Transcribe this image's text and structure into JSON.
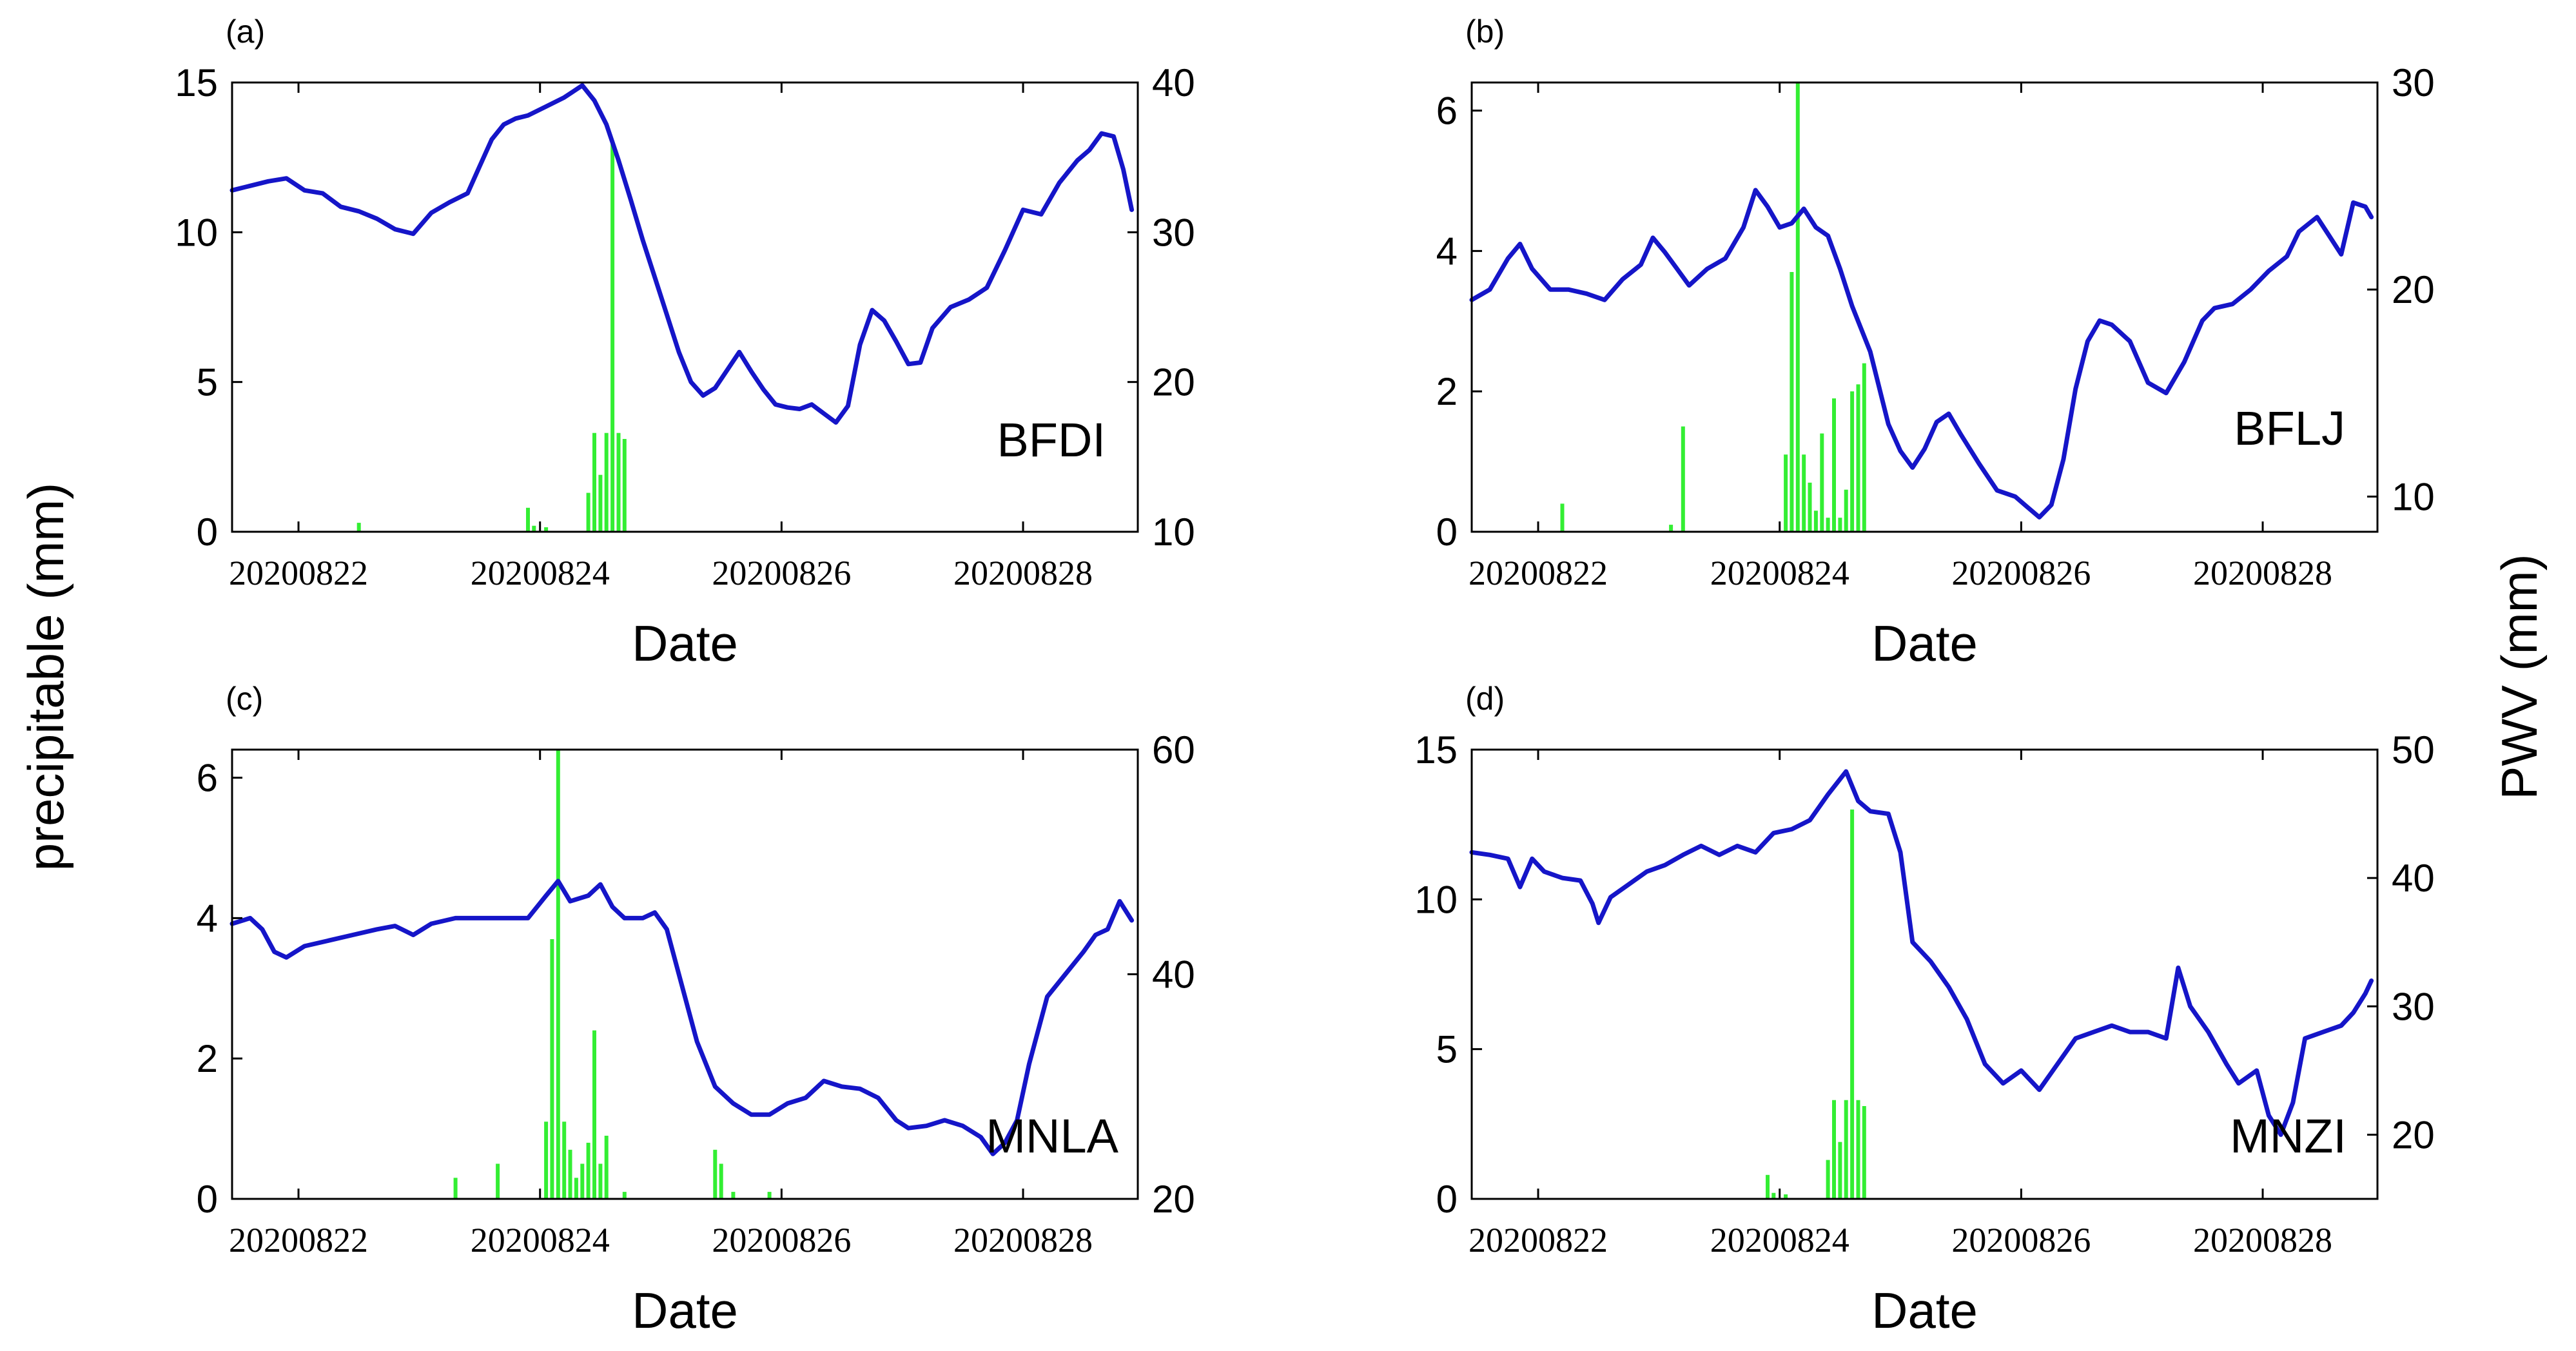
{
  "figure": {
    "left_label": "precipitable (mm)",
    "right_label": "PWV (mm)",
    "x_tick_labels": [
      "20200822",
      "20200824",
      "20200826",
      "20200828"
    ],
    "xlabel": "Date"
  },
  "colors": {
    "pwv_line": "#1515c8",
    "precip_bar": "#33ee33",
    "axis": "#000000"
  },
  "chart_data": [
    {
      "type": "bar+line",
      "panel_label": "(a)",
      "station": "BFDI",
      "xlabel": "Date",
      "x_range": [
        0,
        7.5
      ],
      "x_ticks": [
        0.55,
        2.55,
        4.55,
        6.55
      ],
      "x_tick_labels": [
        "20200822",
        "20200824",
        "20200826",
        "20200828"
      ],
      "left_axis": {
        "label": "precipitable (mm)",
        "range": [
          0,
          15
        ],
        "ticks": [
          0,
          5,
          10,
          15
        ]
      },
      "right_axis": {
        "label": "PWV (mm)",
        "range": [
          10,
          40
        ],
        "ticks": [
          10,
          20,
          30,
          40
        ]
      },
      "precipitation": [
        [
          1.05,
          0.3
        ],
        [
          2.45,
          0.8
        ],
        [
          2.5,
          0.2
        ],
        [
          2.6,
          0.15
        ],
        [
          2.95,
          1.3
        ],
        [
          3.0,
          3.3
        ],
        [
          3.05,
          1.9
        ],
        [
          3.1,
          3.3
        ],
        [
          3.15,
          13.0
        ],
        [
          3.2,
          3.3
        ],
        [
          3.25,
          3.1
        ]
      ],
      "pwv": [
        [
          0,
          32.8
        ],
        [
          0.15,
          33.1
        ],
        [
          0.3,
          33.4
        ],
        [
          0.45,
          33.6
        ],
        [
          0.6,
          32.8
        ],
        [
          0.75,
          32.6
        ],
        [
          0.9,
          31.7
        ],
        [
          1.05,
          31.4
        ],
        [
          1.2,
          30.9
        ],
        [
          1.35,
          30.2
        ],
        [
          1.5,
          29.9
        ],
        [
          1.65,
          31.3
        ],
        [
          1.8,
          32.0
        ],
        [
          1.95,
          32.6
        ],
        [
          2.05,
          34.4
        ],
        [
          2.15,
          36.2
        ],
        [
          2.25,
          37.2
        ],
        [
          2.35,
          37.6
        ],
        [
          2.45,
          37.8
        ],
        [
          2.6,
          38.4
        ],
        [
          2.75,
          39.0
        ],
        [
          2.9,
          39.8
        ],
        [
          3.0,
          38.8
        ],
        [
          3.1,
          37.2
        ],
        [
          3.2,
          34.8
        ],
        [
          3.3,
          32.2
        ],
        [
          3.4,
          29.5
        ],
        [
          3.5,
          27.0
        ],
        [
          3.6,
          24.5
        ],
        [
          3.7,
          22.0
        ],
        [
          3.8,
          20.0
        ],
        [
          3.9,
          19.1
        ],
        [
          4.0,
          19.6
        ],
        [
          4.1,
          20.8
        ],
        [
          4.2,
          22.0
        ],
        [
          4.3,
          20.7
        ],
        [
          4.4,
          19.5
        ],
        [
          4.5,
          18.5
        ],
        [
          4.6,
          18.3
        ],
        [
          4.7,
          18.2
        ],
        [
          4.8,
          18.5
        ],
        [
          4.9,
          17.9
        ],
        [
          5.0,
          17.3
        ],
        [
          5.1,
          18.4
        ],
        [
          5.2,
          22.5
        ],
        [
          5.3,
          24.8
        ],
        [
          5.4,
          24.1
        ],
        [
          5.5,
          22.7
        ],
        [
          5.6,
          21.2
        ],
        [
          5.7,
          21.3
        ],
        [
          5.8,
          23.6
        ],
        [
          5.95,
          25.0
        ],
        [
          6.1,
          25.5
        ],
        [
          6.25,
          26.3
        ],
        [
          6.4,
          28.8
        ],
        [
          6.55,
          31.5
        ],
        [
          6.7,
          31.2
        ],
        [
          6.85,
          33.3
        ],
        [
          7.0,
          34.8
        ],
        [
          7.1,
          35.5
        ],
        [
          7.2,
          36.6
        ],
        [
          7.3,
          36.4
        ],
        [
          7.38,
          34.2
        ],
        [
          7.45,
          31.5
        ]
      ]
    },
    {
      "type": "bar+line",
      "panel_label": "(b)",
      "station": "BFLJ",
      "xlabel": "Date",
      "x_range": [
        0,
        7.5
      ],
      "x_ticks": [
        0.55,
        2.55,
        4.55,
        6.55
      ],
      "x_tick_labels": [
        "20200822",
        "20200824",
        "20200826",
        "20200828"
      ],
      "left_axis": {
        "label": "precipitable (mm)",
        "range": [
          0,
          6.4
        ],
        "ticks": [
          0,
          2,
          4,
          6
        ]
      },
      "right_axis": {
        "label": "PWV (mm)",
        "range": [
          8.3,
          30
        ],
        "ticks": [
          10,
          20,
          30
        ]
      },
      "precipitation": [
        [
          0.75,
          0.4
        ],
        [
          1.65,
          0.1
        ],
        [
          1.75,
          1.5
        ],
        [
          2.6,
          1.1
        ],
        [
          2.65,
          3.7
        ],
        [
          2.7,
          6.4
        ],
        [
          2.75,
          1.1
        ],
        [
          2.8,
          0.7
        ],
        [
          2.85,
          0.3
        ],
        [
          2.9,
          1.4
        ],
        [
          2.95,
          0.2
        ],
        [
          3.0,
          1.9
        ],
        [
          3.05,
          0.2
        ],
        [
          3.1,
          0.6
        ],
        [
          3.15,
          2.0
        ],
        [
          3.2,
          2.1
        ],
        [
          3.25,
          2.4
        ]
      ],
      "pwv": [
        [
          0,
          19.5
        ],
        [
          0.15,
          20.0
        ],
        [
          0.3,
          21.5
        ],
        [
          0.4,
          22.2
        ],
        [
          0.5,
          21.0
        ],
        [
          0.65,
          20.0
        ],
        [
          0.8,
          20.0
        ],
        [
          0.95,
          19.8
        ],
        [
          1.1,
          19.5
        ],
        [
          1.25,
          20.5
        ],
        [
          1.4,
          21.2
        ],
        [
          1.5,
          22.5
        ],
        [
          1.6,
          21.8
        ],
        [
          1.7,
          21.0
        ],
        [
          1.8,
          20.2
        ],
        [
          1.95,
          21.0
        ],
        [
          2.1,
          21.5
        ],
        [
          2.25,
          23.0
        ],
        [
          2.35,
          24.8
        ],
        [
          2.45,
          24.0
        ],
        [
          2.55,
          23.0
        ],
        [
          2.65,
          23.2
        ],
        [
          2.75,
          23.9
        ],
        [
          2.85,
          23.0
        ],
        [
          2.95,
          22.6
        ],
        [
          3.05,
          21.0
        ],
        [
          3.15,
          19.2
        ],
        [
          3.3,
          17.0
        ],
        [
          3.45,
          13.5
        ],
        [
          3.55,
          12.2
        ],
        [
          3.65,
          11.4
        ],
        [
          3.75,
          12.3
        ],
        [
          3.85,
          13.6
        ],
        [
          3.95,
          14.0
        ],
        [
          4.05,
          13.0
        ],
        [
          4.2,
          11.6
        ],
        [
          4.35,
          10.3
        ],
        [
          4.5,
          10.0
        ],
        [
          4.6,
          9.5
        ],
        [
          4.7,
          9.0
        ],
        [
          4.8,
          9.6
        ],
        [
          4.9,
          11.8
        ],
        [
          5.0,
          15.2
        ],
        [
          5.1,
          17.5
        ],
        [
          5.2,
          18.5
        ],
        [
          5.3,
          18.3
        ],
        [
          5.45,
          17.5
        ],
        [
          5.6,
          15.5
        ],
        [
          5.75,
          15.0
        ],
        [
          5.9,
          16.5
        ],
        [
          6.05,
          18.5
        ],
        [
          6.15,
          19.1
        ],
        [
          6.3,
          19.3
        ],
        [
          6.45,
          20.0
        ],
        [
          6.6,
          20.9
        ],
        [
          6.75,
          21.6
        ],
        [
          6.85,
          22.8
        ],
        [
          7.0,
          23.5
        ],
        [
          7.1,
          22.6
        ],
        [
          7.2,
          21.7
        ],
        [
          7.3,
          24.2
        ],
        [
          7.4,
          24.0
        ],
        [
          7.45,
          23.5
        ]
      ]
    },
    {
      "type": "bar+line",
      "panel_label": "(c)",
      "station": "MNLA",
      "xlabel": "Date",
      "x_range": [
        0,
        7.5
      ],
      "x_ticks": [
        0.55,
        2.55,
        4.55,
        6.55
      ],
      "x_tick_labels": [
        "20200822",
        "20200824",
        "20200826",
        "20200828"
      ],
      "left_axis": {
        "label": "precipitable (mm)",
        "range": [
          0,
          6.4
        ],
        "ticks": [
          0,
          2,
          4,
          6
        ]
      },
      "right_axis": {
        "label": "PWV (mm)",
        "range": [
          20,
          60
        ],
        "ticks": [
          20,
          40,
          60
        ]
      },
      "precipitation": [
        [
          1.85,
          0.3
        ],
        [
          2.2,
          0.5
        ],
        [
          2.6,
          1.1
        ],
        [
          2.65,
          3.7
        ],
        [
          2.7,
          6.4
        ],
        [
          2.75,
          1.1
        ],
        [
          2.8,
          0.7
        ],
        [
          2.85,
          0.3
        ],
        [
          2.9,
          0.5
        ],
        [
          2.95,
          0.8
        ],
        [
          3.0,
          2.4
        ],
        [
          3.05,
          0.5
        ],
        [
          3.1,
          0.9
        ],
        [
          3.25,
          0.1
        ],
        [
          4.0,
          0.7
        ],
        [
          4.05,
          0.5
        ],
        [
          4.15,
          0.1
        ],
        [
          4.45,
          0.1
        ]
      ],
      "pwv": [
        [
          0,
          44.5
        ],
        [
          0.15,
          45.0
        ],
        [
          0.25,
          44.0
        ],
        [
          0.35,
          42.0
        ],
        [
          0.45,
          41.5
        ],
        [
          0.6,
          42.5
        ],
        [
          0.8,
          43.0
        ],
        [
          1.0,
          43.5
        ],
        [
          1.2,
          44.0
        ],
        [
          1.35,
          44.3
        ],
        [
          1.5,
          43.5
        ],
        [
          1.65,
          44.5
        ],
        [
          1.85,
          45.0
        ],
        [
          2.05,
          45.0
        ],
        [
          2.25,
          45.0
        ],
        [
          2.45,
          45.0
        ],
        [
          2.6,
          47.0
        ],
        [
          2.7,
          48.3
        ],
        [
          2.8,
          46.5
        ],
        [
          2.95,
          47.0
        ],
        [
          3.05,
          48.0
        ],
        [
          3.15,
          46.0
        ],
        [
          3.25,
          45.0
        ],
        [
          3.4,
          45.0
        ],
        [
          3.5,
          45.5
        ],
        [
          3.6,
          44.0
        ],
        [
          3.7,
          40.0
        ],
        [
          3.85,
          34.0
        ],
        [
          4.0,
          30.0
        ],
        [
          4.15,
          28.5
        ],
        [
          4.3,
          27.5
        ],
        [
          4.45,
          27.5
        ],
        [
          4.6,
          28.5
        ],
        [
          4.75,
          29.0
        ],
        [
          4.9,
          30.5
        ],
        [
          5.05,
          30.0
        ],
        [
          5.2,
          29.8
        ],
        [
          5.35,
          29.0
        ],
        [
          5.5,
          27.0
        ],
        [
          5.6,
          26.3
        ],
        [
          5.75,
          26.5
        ],
        [
          5.9,
          27.0
        ],
        [
          6.05,
          26.5
        ],
        [
          6.2,
          25.5
        ],
        [
          6.3,
          24.0
        ],
        [
          6.4,
          25.0
        ],
        [
          6.5,
          27.0
        ],
        [
          6.6,
          32.0
        ],
        [
          6.75,
          38.0
        ],
        [
          6.9,
          40.0
        ],
        [
          7.05,
          42.0
        ],
        [
          7.15,
          43.5
        ],
        [
          7.25,
          44.0
        ],
        [
          7.35,
          46.5
        ],
        [
          7.45,
          44.8
        ]
      ]
    },
    {
      "type": "bar+line",
      "panel_label": "(d)",
      "station": "MNZI",
      "xlabel": "Date",
      "x_range": [
        0,
        7.5
      ],
      "x_ticks": [
        0.55,
        2.55,
        4.55,
        6.55
      ],
      "x_tick_labels": [
        "20200822",
        "20200824",
        "20200826",
        "20200828"
      ],
      "left_axis": {
        "label": "precipitable (mm)",
        "range": [
          0,
          15
        ],
        "ticks": [
          0,
          5,
          10,
          15
        ]
      },
      "right_axis": {
        "label": "PWV (mm)",
        "range": [
          15,
          50
        ],
        "ticks": [
          20,
          30,
          40,
          50
        ]
      },
      "precipitation": [
        [
          2.45,
          0.8
        ],
        [
          2.5,
          0.2
        ],
        [
          2.6,
          0.15
        ],
        [
          2.95,
          1.3
        ],
        [
          3.0,
          3.3
        ],
        [
          3.05,
          1.9
        ],
        [
          3.1,
          3.3
        ],
        [
          3.15,
          13.0
        ],
        [
          3.2,
          3.3
        ],
        [
          3.25,
          3.1
        ]
      ],
      "pwv": [
        [
          0,
          42.0
        ],
        [
          0.15,
          41.8
        ],
        [
          0.3,
          41.5
        ],
        [
          0.4,
          39.3
        ],
        [
          0.5,
          41.5
        ],
        [
          0.6,
          40.5
        ],
        [
          0.75,
          40.0
        ],
        [
          0.9,
          39.8
        ],
        [
          1.0,
          38.0
        ],
        [
          1.05,
          36.5
        ],
        [
          1.15,
          38.5
        ],
        [
          1.3,
          39.5
        ],
        [
          1.45,
          40.5
        ],
        [
          1.6,
          41.0
        ],
        [
          1.75,
          41.8
        ],
        [
          1.9,
          42.5
        ],
        [
          2.05,
          41.8
        ],
        [
          2.2,
          42.5
        ],
        [
          2.35,
          42.0
        ],
        [
          2.5,
          43.5
        ],
        [
          2.65,
          43.8
        ],
        [
          2.8,
          44.5
        ],
        [
          2.95,
          46.5
        ],
        [
          3.1,
          48.3
        ],
        [
          3.2,
          46.0
        ],
        [
          3.3,
          45.2
        ],
        [
          3.45,
          45.0
        ],
        [
          3.55,
          42.0
        ],
        [
          3.65,
          35.0
        ],
        [
          3.8,
          33.5
        ],
        [
          3.95,
          31.5
        ],
        [
          4.1,
          29.0
        ],
        [
          4.25,
          25.5
        ],
        [
          4.4,
          24.0
        ],
        [
          4.55,
          25.0
        ],
        [
          4.7,
          23.5
        ],
        [
          4.85,
          25.5
        ],
        [
          5.0,
          27.5
        ],
        [
          5.15,
          28.0
        ],
        [
          5.3,
          28.5
        ],
        [
          5.45,
          28.0
        ],
        [
          5.6,
          28.0
        ],
        [
          5.75,
          27.5
        ],
        [
          5.85,
          33.0
        ],
        [
          5.95,
          30.0
        ],
        [
          6.1,
          28.0
        ],
        [
          6.25,
          25.5
        ],
        [
          6.35,
          24.0
        ],
        [
          6.5,
          25.0
        ],
        [
          6.6,
          21.5
        ],
        [
          6.7,
          20.0
        ],
        [
          6.8,
          22.5
        ],
        [
          6.9,
          27.5
        ],
        [
          7.05,
          28.0
        ],
        [
          7.2,
          28.5
        ],
        [
          7.3,
          29.5
        ],
        [
          7.4,
          31.0
        ],
        [
          7.45,
          32.0
        ]
      ]
    }
  ]
}
